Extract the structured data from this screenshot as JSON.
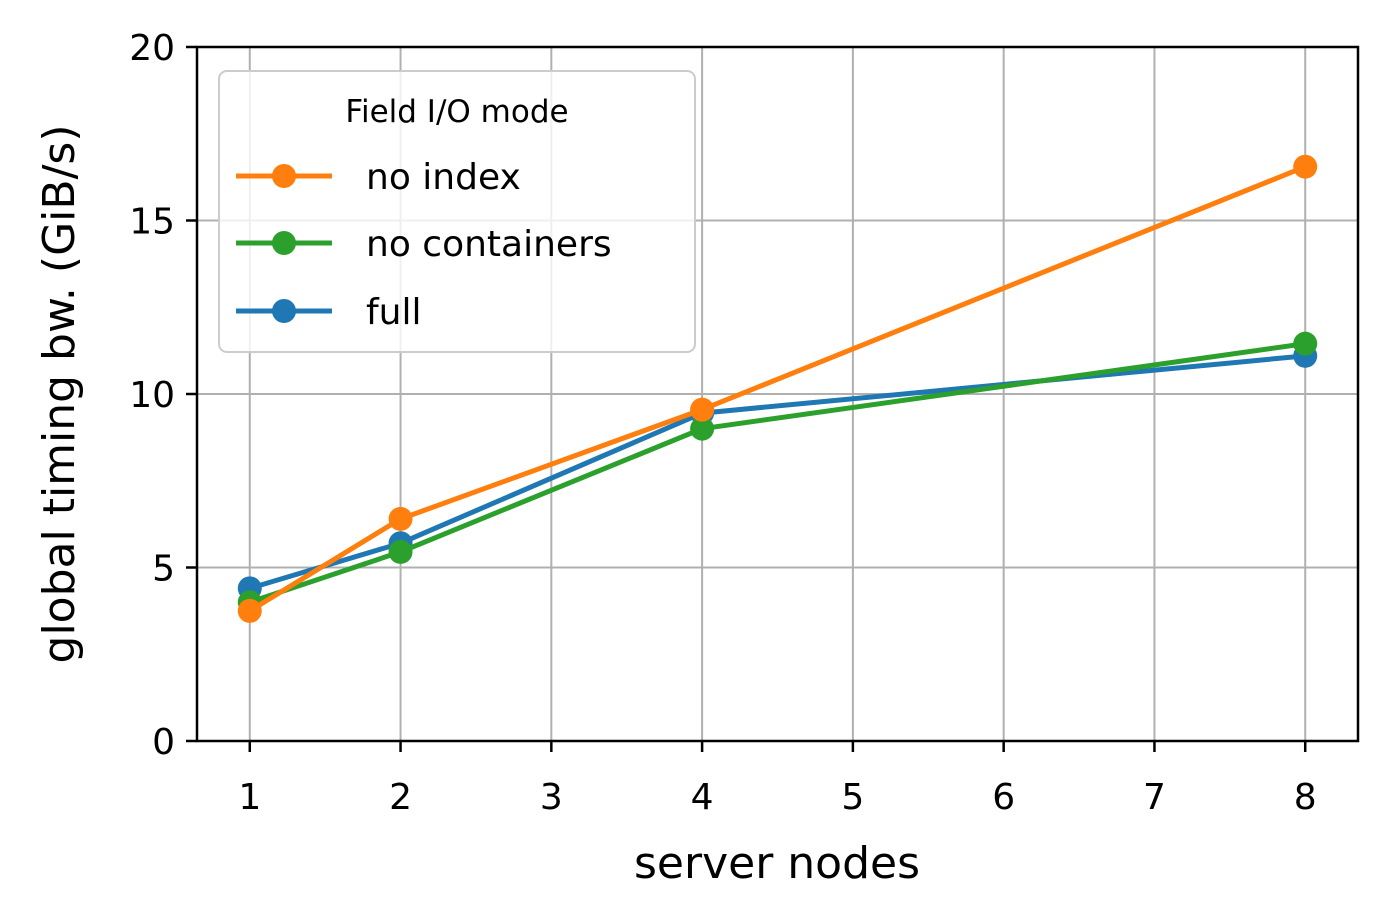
{
  "chart_data": {
    "type": "line",
    "xlabel": "server nodes",
    "ylabel": "global timing bw. (GiB/s)",
    "xlim": [
      0.65,
      8.35
    ],
    "ylim": [
      0,
      20
    ],
    "xticks": [
      1,
      2,
      3,
      4,
      5,
      6,
      7,
      8
    ],
    "yticks": [
      0,
      5,
      10,
      15,
      20
    ],
    "grid": true,
    "legend": {
      "title": "Field I/O mode",
      "placement": "top-left"
    },
    "series": [
      {
        "name": "full",
        "color": "#1f77b4",
        "x": [
          1,
          2,
          4,
          8
        ],
        "y": [
          4.4,
          5.7,
          9.45,
          11.1
        ]
      },
      {
        "name": "no containers",
        "color": "#2ca02c",
        "x": [
          1,
          2,
          4,
          8
        ],
        "y": [
          4.0,
          5.45,
          9.0,
          11.45
        ]
      },
      {
        "name": "no index",
        "color": "#ff7f0e",
        "x": [
          1,
          2,
          4,
          8
        ],
        "y": [
          3.75,
          6.4,
          9.55,
          16.55
        ]
      }
    ],
    "legend_order": [
      "no index",
      "no containers",
      "full"
    ]
  }
}
